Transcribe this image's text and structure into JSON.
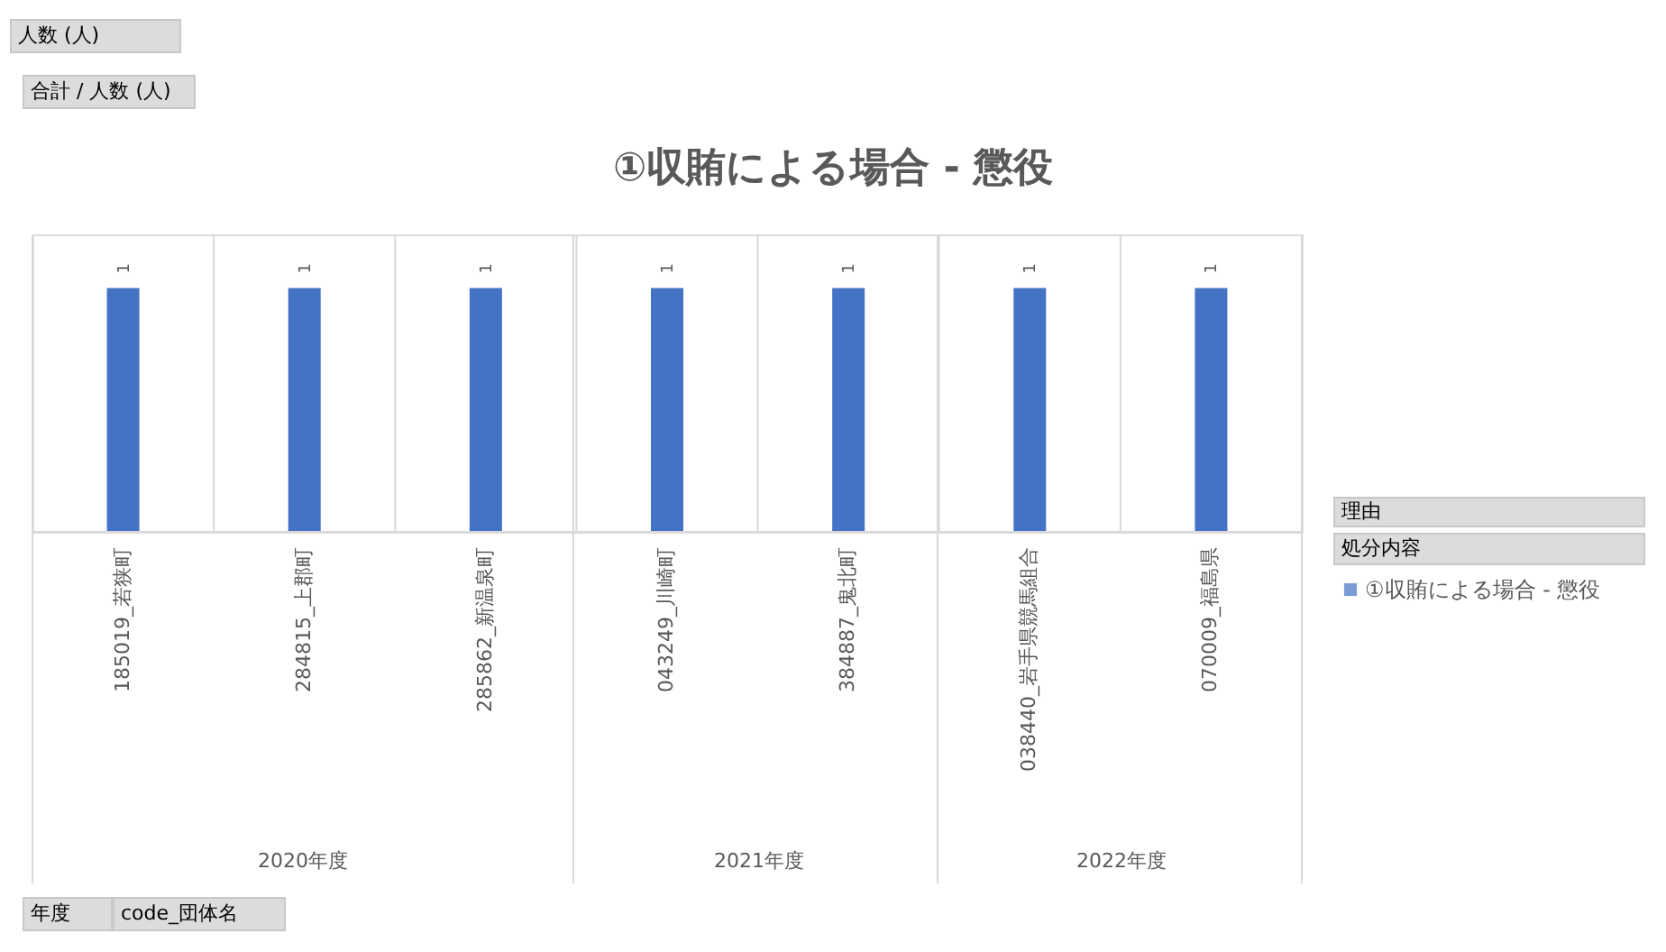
{
  "chart_data": {
    "type": "bar",
    "title": "①収賄による場合 - 懲役",
    "categories": [
      "185019_若狭町",
      "284815_上郡町",
      "285862_新温泉町",
      "043249_川崎町",
      "384887_鬼北町",
      "038440_岩手県競馬組合",
      "070009_福島県"
    ],
    "series": [
      {
        "name": "①収賄による場合 - 懲役",
        "color": "#4472c4",
        "values": [
          1,
          1,
          1,
          1,
          1,
          1,
          1
        ]
      }
    ],
    "ylim": [
      0,
      1.22
    ],
    "data_labels": true,
    "grid": "x",
    "legend": "right",
    "tick_labels": "x",
    "annotations": [
      "2020年度",
      "2021年度",
      "2022年度",
      "人数 (人)",
      "合計 / 人数 (人)",
      "理由",
      "処分内容",
      "年度",
      "code_団体名"
    ]
  }
}
